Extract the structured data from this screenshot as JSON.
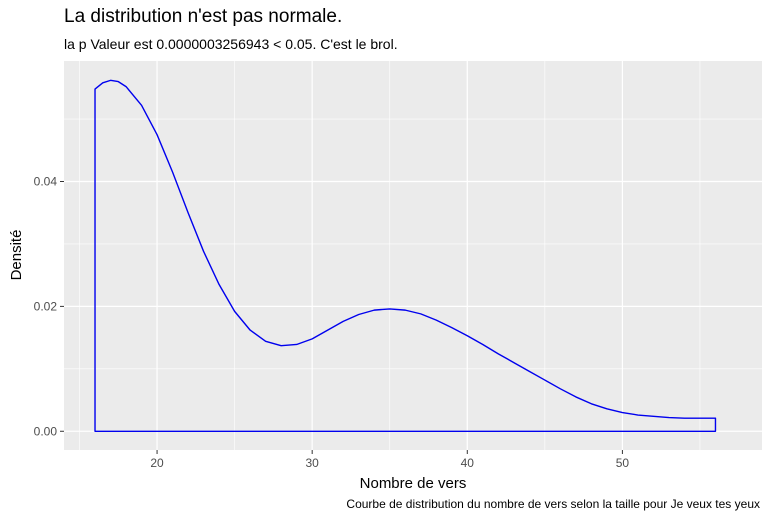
{
  "chart_data": {
    "type": "area",
    "title": "La distribution n'est pas normale.",
    "subtitle": "la p Valeur est  0.0000003256943  < 0.05. C'est le brol.",
    "caption": "Courbe de distribution du nombre de vers selon la taille pour  Je veux tes yeux",
    "xlabel": "Nombre de vers",
    "ylabel": "Densité",
    "xlim": [
      14,
      59
    ],
    "ylim": [
      -0.003,
      0.0593
    ],
    "x_ticks": [
      20,
      30,
      40,
      50
    ],
    "x_tick_labels": [
      "20",
      "30",
      "40",
      "50"
    ],
    "y_ticks": [
      0,
      0.02,
      0.04
    ],
    "y_tick_labels": [
      "0.00",
      "0.02",
      "0.04"
    ],
    "grid": true,
    "series": [
      {
        "color": "#0000ee",
        "x": [
          16,
          16.5,
          17,
          17.5,
          18,
          19,
          20,
          21,
          22,
          23,
          24,
          25,
          26,
          27,
          28,
          29,
          30,
          31,
          32,
          33,
          34,
          35,
          36,
          37,
          38,
          39,
          40,
          41,
          42,
          43,
          44,
          45,
          46,
          47,
          48,
          49,
          50,
          51,
          52,
          53,
          54,
          55,
          56
        ],
        "y": [
          0.0548,
          0.0558,
          0.0562,
          0.056,
          0.0552,
          0.0522,
          0.0475,
          0.0415,
          0.035,
          0.0288,
          0.0235,
          0.0192,
          0.0162,
          0.0144,
          0.0137,
          0.0139,
          0.0148,
          0.0162,
          0.0176,
          0.0187,
          0.0194,
          0.0196,
          0.0194,
          0.0188,
          0.0178,
          0.0166,
          0.0153,
          0.0139,
          0.0124,
          0.011,
          0.0096,
          0.0082,
          0.0068,
          0.0055,
          0.0044,
          0.0036,
          0.003,
          0.0026,
          0.0024,
          0.0022,
          0.0021,
          0.0021,
          0.0021
        ]
      }
    ]
  }
}
